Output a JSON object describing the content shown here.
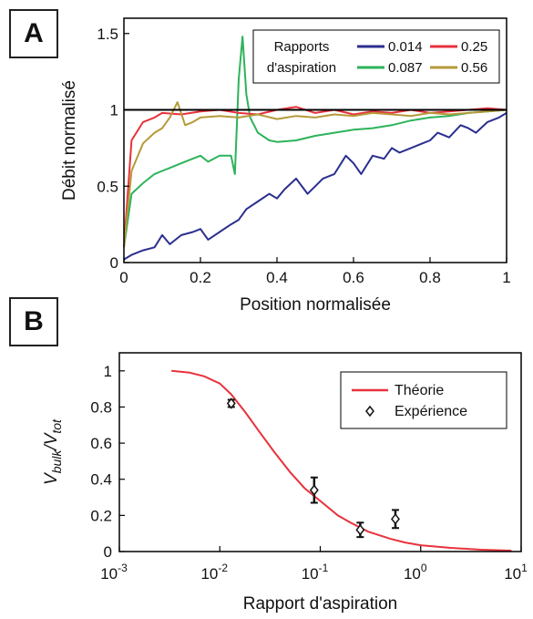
{
  "panels": {
    "a": "A",
    "b": "B"
  },
  "chart_data": [
    {
      "type": "line",
      "panel": "A",
      "xlabel": "Position normalisée",
      "ylabel": "Débit normalisé",
      "xlim": [
        0,
        1
      ],
      "ylim": [
        0,
        1.6
      ],
      "xticks": [
        "0",
        "0.2",
        "0.4",
        "0.6",
        "0.8",
        "1"
      ],
      "xtick_values": [
        0,
        0.2,
        0.4,
        0.6,
        0.8,
        1
      ],
      "yticks": [
        "0",
        "0.5",
        "1",
        "1.5"
      ],
      "ytick_values": [
        0,
        0.5,
        1,
        1.5
      ],
      "reference_line_y": 1,
      "legend": {
        "title_line1": "Rapports",
        "title_line2": "d'aspiration",
        "placement": "top-right"
      },
      "series": [
        {
          "name": "0.014",
          "color": "#2b2f8f",
          "x": [
            0,
            0.02,
            0.05,
            0.08,
            0.1,
            0.12,
            0.15,
            0.18,
            0.2,
            0.22,
            0.25,
            0.28,
            0.3,
            0.32,
            0.35,
            0.38,
            0.4,
            0.42,
            0.45,
            0.48,
            0.5,
            0.52,
            0.55,
            0.58,
            0.6,
            0.62,
            0.65,
            0.68,
            0.7,
            0.72,
            0.75,
            0.78,
            0.8,
            0.82,
            0.85,
            0.88,
            0.9,
            0.92,
            0.95,
            0.98,
            1
          ],
          "y": [
            0.02,
            0.05,
            0.08,
            0.1,
            0.18,
            0.12,
            0.18,
            0.2,
            0.22,
            0.15,
            0.2,
            0.25,
            0.28,
            0.35,
            0.4,
            0.45,
            0.42,
            0.48,
            0.55,
            0.45,
            0.5,
            0.55,
            0.58,
            0.7,
            0.65,
            0.58,
            0.7,
            0.68,
            0.75,
            0.72,
            0.75,
            0.78,
            0.8,
            0.85,
            0.82,
            0.9,
            0.88,
            0.85,
            0.92,
            0.95,
            0.98
          ]
        },
        {
          "name": "0.087",
          "color": "#2db35a",
          "x": [
            0,
            0.02,
            0.05,
            0.08,
            0.1,
            0.12,
            0.15,
            0.18,
            0.2,
            0.22,
            0.25,
            0.28,
            0.29,
            0.3,
            0.31,
            0.32,
            0.33,
            0.35,
            0.38,
            0.4,
            0.45,
            0.5,
            0.55,
            0.6,
            0.65,
            0.7,
            0.75,
            0.8,
            0.85,
            0.9,
            0.95,
            1
          ],
          "y": [
            0.1,
            0.45,
            0.52,
            0.58,
            0.6,
            0.62,
            0.65,
            0.68,
            0.7,
            0.66,
            0.7,
            0.7,
            0.58,
            1.2,
            1.48,
            1.1,
            0.95,
            0.85,
            0.8,
            0.79,
            0.8,
            0.83,
            0.85,
            0.87,
            0.88,
            0.9,
            0.93,
            0.95,
            0.96,
            0.98,
            0.99,
            1.0
          ]
        },
        {
          "name": "0.25",
          "color": "#e8323c",
          "x": [
            0,
            0.02,
            0.05,
            0.08,
            0.1,
            0.15,
            0.2,
            0.25,
            0.3,
            0.35,
            0.4,
            0.45,
            0.5,
            0.55,
            0.6,
            0.65,
            0.7,
            0.75,
            0.8,
            0.85,
            0.9,
            0.95,
            1
          ],
          "y": [
            0.1,
            0.8,
            0.92,
            0.95,
            0.98,
            0.97,
            0.99,
            1.0,
            0.98,
            0.97,
            1.0,
            1.02,
            0.98,
            1.0,
            0.97,
            0.99,
            0.98,
            1.0,
            0.98,
            0.99,
            1.0,
            1.01,
            1.0
          ]
        },
        {
          "name": "0.56",
          "color": "#b59a3a",
          "x": [
            0,
            0.02,
            0.05,
            0.08,
            0.1,
            0.12,
            0.14,
            0.16,
            0.18,
            0.2,
            0.25,
            0.3,
            0.35,
            0.4,
            0.45,
            0.5,
            0.55,
            0.6,
            0.65,
            0.7,
            0.75,
            0.8,
            0.85,
            0.9,
            0.95,
            1
          ],
          "y": [
            0.1,
            0.6,
            0.78,
            0.85,
            0.88,
            0.95,
            1.05,
            0.9,
            0.92,
            0.95,
            0.96,
            0.95,
            0.97,
            0.94,
            0.96,
            0.95,
            0.97,
            0.96,
            0.98,
            0.97,
            0.96,
            0.98,
            0.97,
            0.98,
            0.99,
            1.0
          ]
        }
      ]
    },
    {
      "type": "scatter",
      "panel": "B",
      "xlabel": "Rapport d'aspiration",
      "ylabel_base1": "V",
      "ylabel_sub1": "bulk",
      "ylabel_sep": "/V",
      "ylabel_sub2": "tot",
      "xscale": "log",
      "xlim": [
        0.001,
        10
      ],
      "ylim": [
        0,
        1.1
      ],
      "xticks": [
        {
          "base": "10",
          "exp": "-3"
        },
        {
          "base": "10",
          "exp": "-2"
        },
        {
          "base": "10",
          "exp": "-1"
        },
        {
          "base": "10",
          "exp": "0"
        },
        {
          "base": "10",
          "exp": "1"
        }
      ],
      "xtick_values": [
        0.001,
        0.01,
        0.1,
        1,
        10
      ],
      "yticks": [
        "0",
        "0.2",
        "0.4",
        "0.6",
        "0.8",
        "1"
      ],
      "ytick_values": [
        0,
        0.2,
        0.4,
        0.6,
        0.8,
        1
      ],
      "legend_placement": "top-right",
      "series": [
        {
          "name": "Théorie",
          "kind": "line",
          "color": "#e8323c",
          "x": [
            0.0033,
            0.005,
            0.007,
            0.01,
            0.013,
            0.018,
            0.025,
            0.035,
            0.05,
            0.07,
            0.1,
            0.15,
            0.2,
            0.3,
            0.5,
            0.7,
            1,
            2,
            4,
            8
          ],
          "y": [
            1.0,
            0.99,
            0.97,
            0.93,
            0.87,
            0.77,
            0.66,
            0.55,
            0.44,
            0.35,
            0.28,
            0.2,
            0.16,
            0.11,
            0.07,
            0.05,
            0.035,
            0.02,
            0.01,
            0.005
          ]
        },
        {
          "name": "Expérience",
          "kind": "points",
          "color": "#111111",
          "x": [
            0.013,
            0.087,
            0.25,
            0.56
          ],
          "y": [
            0.82,
            0.34,
            0.12,
            0.18
          ],
          "err": [
            0.02,
            0.07,
            0.04,
            0.05
          ]
        }
      ]
    }
  ]
}
